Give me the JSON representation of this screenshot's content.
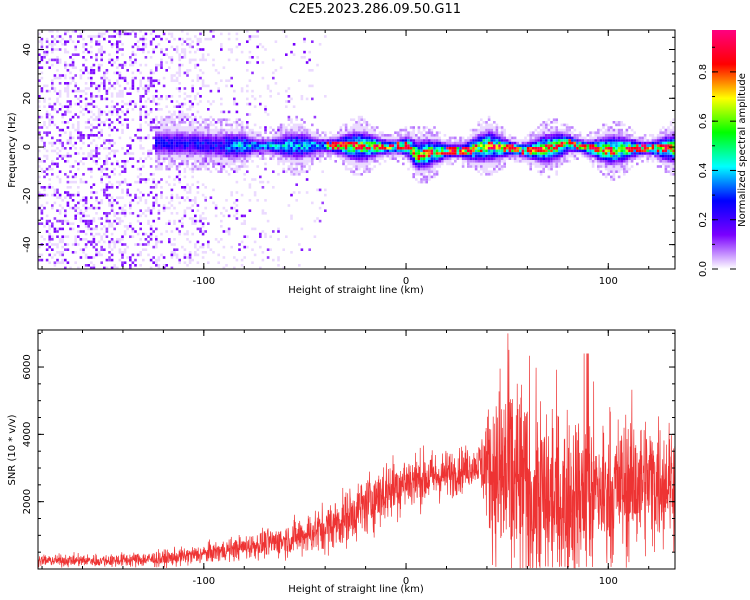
{
  "title": "C2E5.2023.286.09.50.G11",
  "chart_data": [
    {
      "type": "heatmap",
      "xlabel": "Height of straight line (km)",
      "ylabel": "Frequency (Hz)",
      "xlim": [
        -182,
        133
      ],
      "ylim": [
        -50,
        48
      ],
      "x_ticks": [
        "-100",
        "0",
        "100"
      ],
      "y_ticks": [
        "-40",
        "-20",
        "0",
        "20",
        "40"
      ],
      "colorbar": {
        "label": "Normalized spectral amplitude",
        "range": [
          0,
          0.97
        ],
        "ticks": [
          "0.0",
          "0.2",
          "0.4",
          "0.6",
          "0.8"
        ],
        "colors": [
          "#ffffff",
          "#7a00ff",
          "#0000ff",
          "#00ffff",
          "#00ff00",
          "#ffff00",
          "#ff0000",
          "#ff0080"
        ]
      },
      "ridge": {
        "x": [
          -110,
          -90,
          -70,
          -50,
          -30,
          -10,
          0,
          5,
          10,
          20,
          30,
          40,
          50,
          60,
          70,
          80,
          90,
          100,
          110,
          120,
          133
        ],
        "freq": [
          2,
          1,
          1,
          1,
          1,
          0.5,
          1,
          -3,
          -2,
          -1,
          -1,
          1,
          0,
          -1,
          0,
          2,
          0,
          -1,
          0,
          0,
          0
        ]
      },
      "grid": false
    },
    {
      "type": "line",
      "xlabel": "Height of straight line (km)",
      "ylabel": "SNR (10 * v/v)",
      "xlim": [
        -182,
        133
      ],
      "ylim": [
        0,
        7100
      ],
      "x_ticks": [
        "-100",
        "0",
        "100"
      ],
      "y_ticks": [
        "2000",
        "4000",
        "6000"
      ],
      "color": "#ee3333",
      "envelope": {
        "x": [
          -182,
          -150,
          -120,
          -100,
          -80,
          -60,
          -40,
          -30,
          -20,
          -10,
          0,
          10,
          20,
          30,
          35,
          40,
          45,
          50,
          55,
          60,
          70,
          80,
          90,
          100,
          110,
          120,
          133
        ],
        "base": [
          250,
          250,
          300,
          450,
          650,
          850,
          1200,
          1500,
          1900,
          2300,
          2600,
          2700,
          2800,
          3000,
          3100,
          3100,
          2700,
          2600,
          2400,
          2200,
          2000,
          2100,
          2200,
          2300,
          2500,
          2600,
          2700
        ],
        "amp": [
          100,
          120,
          150,
          180,
          220,
          300,
          450,
          500,
          550,
          600,
          550,
          500,
          450,
          400,
          300,
          1000,
          1800,
          2000,
          2000,
          2000,
          1800,
          1600,
          1500,
          1400,
          1300,
          1200,
          1100
        ]
      },
      "grid": false
    }
  ]
}
